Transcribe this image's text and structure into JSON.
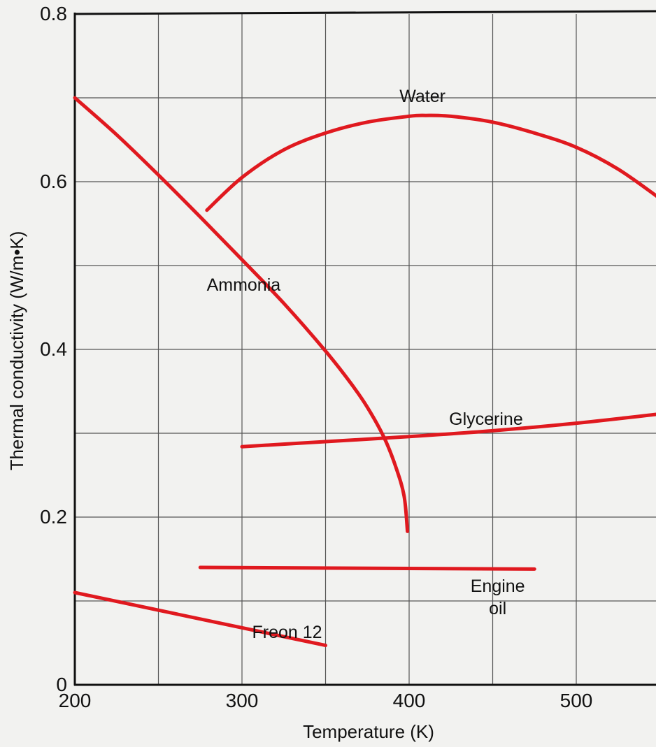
{
  "chart_data": {
    "type": "line",
    "title": "",
    "xlabel": "Temperature (K)",
    "ylabel": "Thermal conductivity (W/m•K)",
    "xlim": [
      200,
      550
    ],
    "ylim": [
      0,
      0.8
    ],
    "xticks": [
      200,
      300,
      400,
      500
    ],
    "yticks": [
      0,
      0.2,
      0.4,
      0.6,
      0.8
    ],
    "x_minor_step": 50,
    "y_minor_step": 0.1,
    "grid": true,
    "line_color": "#e0191f",
    "series": [
      {
        "name": "Water",
        "points": [
          [
            279,
            0.566
          ],
          [
            300,
            0.605
          ],
          [
            325,
            0.638
          ],
          [
            350,
            0.658
          ],
          [
            375,
            0.671
          ],
          [
            400,
            0.678
          ],
          [
            410,
            0.679
          ],
          [
            425,
            0.678
          ],
          [
            450,
            0.671
          ],
          [
            475,
            0.658
          ],
          [
            500,
            0.641
          ],
          [
            525,
            0.615
          ],
          [
            550,
            0.58
          ]
        ],
        "label_lines": [
          "Water"
        ],
        "label_at": [
          408,
          0.695
        ]
      },
      {
        "name": "Ammonia",
        "points": [
          [
            200,
            0.7
          ],
          [
            225,
            0.656
          ],
          [
            250,
            0.608
          ],
          [
            275,
            0.558
          ],
          [
            300,
            0.507
          ],
          [
            325,
            0.455
          ],
          [
            350,
            0.398
          ],
          [
            365,
            0.36
          ],
          [
            375,
            0.331
          ],
          [
            385,
            0.295
          ],
          [
            392,
            0.26
          ],
          [
            397,
            0.225
          ],
          [
            399,
            0.183
          ]
        ],
        "label_lines": [
          "Ammonia"
        ],
        "label_at": [
          301,
          0.47
        ]
      },
      {
        "name": "Glycerine",
        "points": [
          [
            300,
            0.284
          ],
          [
            350,
            0.29
          ],
          [
            400,
            0.296
          ],
          [
            450,
            0.303
          ],
          [
            500,
            0.312
          ],
          [
            550,
            0.323
          ]
        ],
        "label_lines": [
          "Glycerine"
        ],
        "label_at": [
          446,
          0.31
        ]
      },
      {
        "name": "Engine oil",
        "points": [
          [
            275,
            0.14
          ],
          [
            475,
            0.138
          ]
        ],
        "label_lines": [
          "Engine",
          "oil"
        ],
        "label_at": [
          453,
          0.111
        ]
      },
      {
        "name": "Freon 12",
        "points": [
          [
            200,
            0.11
          ],
          [
            350,
            0.047
          ]
        ],
        "label_lines": [
          "Freon 12"
        ],
        "label_at": [
          327,
          0.056
        ]
      }
    ]
  }
}
